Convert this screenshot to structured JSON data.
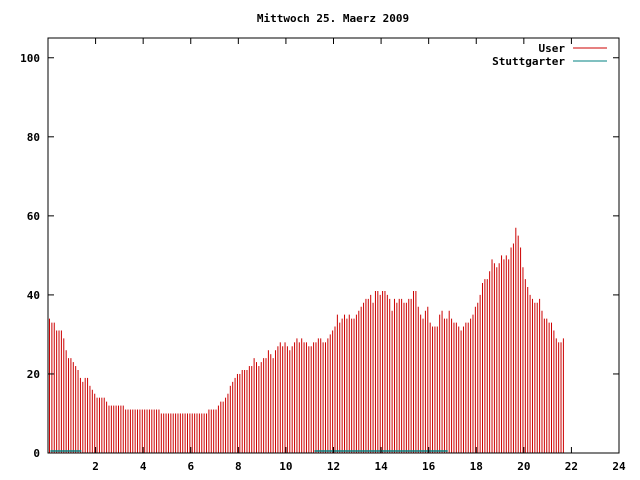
{
  "chart_data": {
    "type": "bar",
    "title": "Mittwoch 25. Maerz 2009",
    "xlabel": "",
    "ylabel": "",
    "xlim": [
      0,
      24
    ],
    "ylim": [
      0,
      105
    ],
    "x_ticks": [
      2,
      4,
      6,
      8,
      10,
      12,
      14,
      16,
      18,
      20,
      22,
      24
    ],
    "y_ticks": [
      0,
      20,
      40,
      60,
      80,
      100
    ],
    "grid": false,
    "legend_position": "top-right",
    "series": [
      {
        "name": "User",
        "color": "#cc0000",
        "x_start": 0.0,
        "x_step": 0.1,
        "values": [
          34,
          33,
          33,
          31,
          31,
          31,
          29,
          26,
          24,
          24,
          23,
          22,
          21,
          19,
          18,
          19,
          19,
          17,
          16,
          15,
          14,
          14,
          14,
          14,
          13,
          12,
          12,
          12,
          12,
          12,
          12,
          12,
          11,
          11,
          11,
          11,
          11,
          11,
          11,
          11,
          11,
          11,
          11,
          11,
          11,
          11,
          11,
          10,
          10,
          10,
          10,
          10,
          10,
          10,
          10,
          10,
          10,
          10,
          10,
          10,
          10,
          10,
          10,
          10,
          10,
          10,
          10,
          11,
          11,
          11,
          11,
          12,
          13,
          13,
          14,
          15,
          17,
          18,
          19,
          20,
          20,
          21,
          21,
          21,
          22,
          22,
          24,
          23,
          22,
          23,
          24,
          24,
          26,
          25,
          24,
          26,
          27,
          28,
          27,
          28,
          27,
          26,
          27,
          28,
          29,
          28,
          29,
          28,
          28,
          27,
          27,
          28,
          28,
          29,
          29,
          28,
          28,
          29,
          30,
          31,
          32,
          35,
          33,
          34,
          35,
          34,
          35,
          34,
          34,
          35,
          36,
          37,
          38,
          39,
          39,
          40,
          38,
          41,
          41,
          40,
          41,
          41,
          40,
          39,
          36,
          39,
          38,
          39,
          39,
          38,
          38,
          39,
          39,
          41,
          41,
          37,
          35,
          34,
          36,
          37,
          33,
          32,
          32,
          32,
          35,
          36,
          34,
          34,
          36,
          34,
          33,
          33,
          32,
          31,
          32,
          33,
          33,
          34,
          35,
          37,
          38,
          40,
          43,
          44,
          44,
          46,
          49,
          48,
          47,
          48,
          50,
          49,
          50,
          49,
          52,
          53,
          57,
          55,
          52,
          47,
          44,
          42,
          40,
          39,
          38,
          38,
          39,
          36,
          34,
          34,
          33,
          33,
          31,
          29,
          28,
          28,
          29
        ]
      },
      {
        "name": "Stuttgarter",
        "color": "#008080",
        "segments": [
          {
            "x_start": 0.1,
            "x_end": 1.4,
            "value": 1
          },
          {
            "x_start": 11.2,
            "x_end": 16.8,
            "value": 1
          }
        ]
      }
    ]
  }
}
